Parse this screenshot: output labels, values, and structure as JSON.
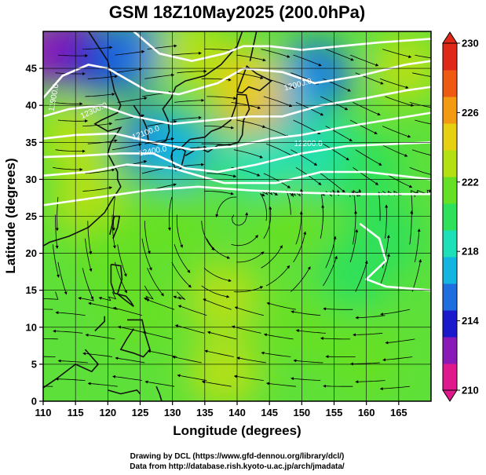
{
  "chart_data": {
    "type": "map-streamline-contour",
    "title": "GSM 18Z10May2025 (200.0hPa)",
    "xlabel": "Longitude (degrees)",
    "ylabel": "Latitude  (degrees)",
    "xlim": [
      110,
      170
    ],
    "ylim": [
      0,
      50
    ],
    "x_ticks": [
      110,
      115,
      120,
      125,
      130,
      135,
      140,
      145,
      150,
      155,
      160,
      165
    ],
    "y_ticks": [
      0,
      5,
      10,
      15,
      20,
      25,
      30,
      35,
      40,
      45
    ],
    "grid": true,
    "colorbar": {
      "min": 210,
      "max": 230,
      "labels": [
        230,
        226,
        222,
        218,
        214,
        210
      ],
      "position": "right",
      "colors": [
        "#e0188e",
        "#8a1ab8",
        "#1a1acc",
        "#1f6ee0",
        "#12b4e0",
        "#1ee0b8",
        "#2ee05a",
        "#66e024",
        "#b4e012",
        "#e6d012",
        "#f29a12",
        "#ee5a12",
        "#e02818"
      ]
    },
    "contours": {
      "field": "geopotential height (m)",
      "labels": [
        "11900.0",
        "12000.0",
        "12100.0",
        "12200.0",
        "12300.0",
        "12400.0"
      ]
    },
    "temperature_patches": [
      {
        "lon": 111,
        "lat": 47,
        "value": 211
      },
      {
        "lon": 114,
        "lat": 48,
        "value": 212
      },
      {
        "lon": 119,
        "lat": 46,
        "value": 214
      },
      {
        "lon": 124,
        "lat": 47,
        "value": 215
      },
      {
        "lon": 152,
        "lat": 44,
        "value": 215.5
      },
      {
        "lon": 147,
        "lat": 41,
        "value": 217
      },
      {
        "lon": 127,
        "lat": 35,
        "value": 215.5
      },
      {
        "lon": 131,
        "lat": 34,
        "value": 217
      },
      {
        "lon": 143,
        "lat": 33,
        "value": 218
      },
      {
        "lon": 154,
        "lat": 33,
        "value": 219
      },
      {
        "lon": 160,
        "lat": 31,
        "value": 219.5
      },
      {
        "lon": 163,
        "lat": 22,
        "value": 219.5
      },
      {
        "lon": 158,
        "lat": 17,
        "value": 220
      },
      {
        "lon": 142,
        "lat": 41,
        "value": 227
      },
      {
        "lon": 141,
        "lat": 43,
        "value": 225
      },
      {
        "lon": 133,
        "lat": 47,
        "value": 223
      },
      {
        "lon": 166,
        "lat": 45,
        "value": 223
      },
      {
        "lon": 115,
        "lat": 36,
        "value": 223
      },
      {
        "lon": 117,
        "lat": 27,
        "value": 222.5
      },
      {
        "lon": 120,
        "lat": 20,
        "value": 222
      },
      {
        "lon": 125,
        "lat": 12,
        "value": 222
      },
      {
        "lon": 138,
        "lat": 14,
        "value": 222.5
      },
      {
        "lon": 150,
        "lat": 10,
        "value": 222
      },
      {
        "lon": 138,
        "lat": 4,
        "value": 222.5
      },
      {
        "lon": 148,
        "lat": 24,
        "value": 221.5
      },
      {
        "lon": 130,
        "lat": 24,
        "value": 221
      },
      {
        "lon": 160,
        "lat": 6,
        "value": 222
      }
    ]
  },
  "credits": {
    "drawing": "Drawing by DCL (https://www.gfd-dennou.org/library/dcl/)",
    "data": "Data from http://database.rish.kyoto-u.ac.jp/arch/jmadata/"
  },
  "colors": {
    "contour": "#ffffff",
    "streamline": "#000000",
    "grid": "#000000"
  }
}
